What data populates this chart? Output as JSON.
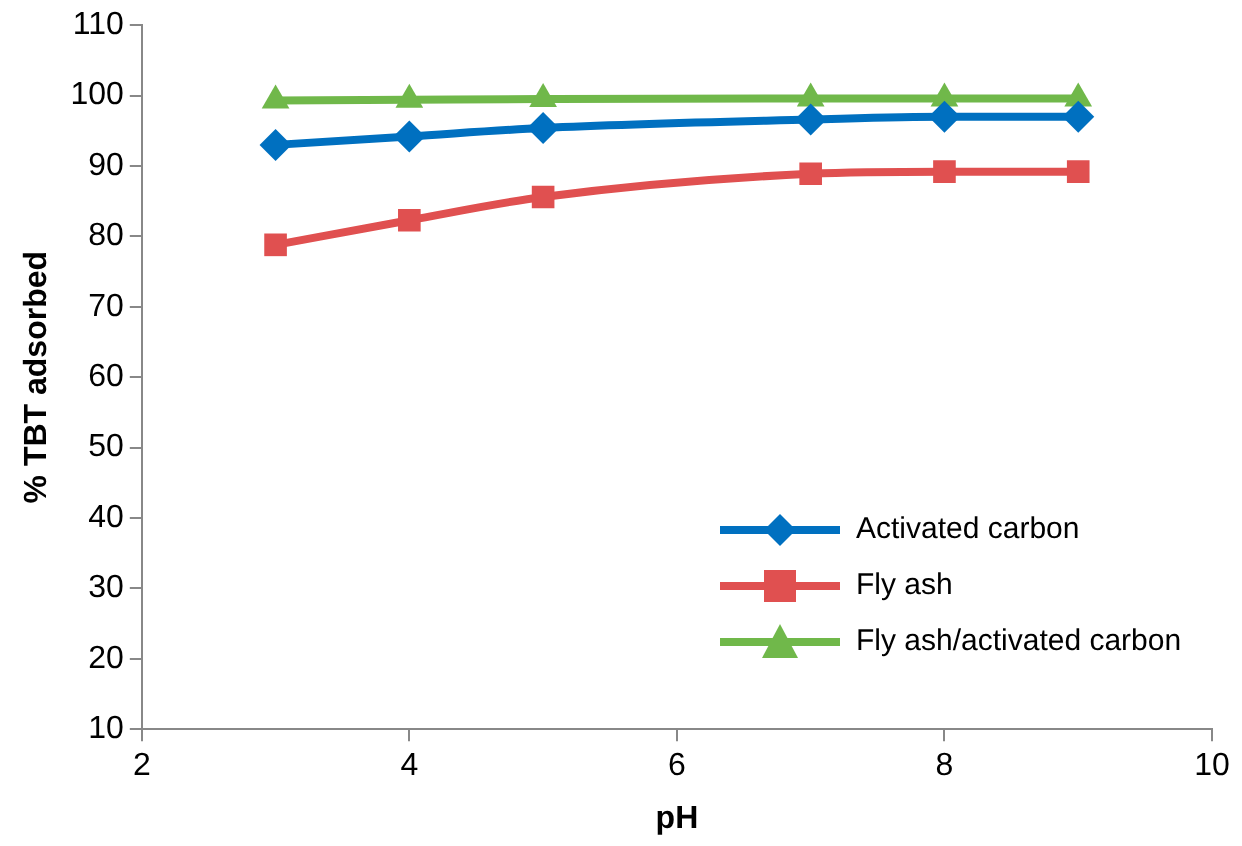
{
  "chart_data": {
    "type": "line",
    "xlabel": "pH",
    "ylabel": "% TBT adsorbed",
    "x": [
      3,
      4,
      5,
      7,
      8,
      9
    ],
    "series": [
      {
        "name": "Activated carbon",
        "color": "#0070c0",
        "marker": "diamond",
        "values": [
          93,
          94.2,
          95.4,
          96.6,
          97,
          97
        ]
      },
      {
        "name": "Fly ash",
        "color": "#e05050",
        "marker": "square",
        "values": [
          78.8,
          82.3,
          85.6,
          88.9,
          89.2,
          89.2
        ]
      },
      {
        "name": "Fly ash/activated carbon",
        "color": "#70b84a",
        "marker": "triangle",
        "values": [
          99.3,
          99.4,
          99.5,
          99.6,
          99.6,
          99.6
        ]
      }
    ],
    "xlim": [
      2,
      10
    ],
    "xticks": [
      2,
      4,
      6,
      8,
      10
    ],
    "ylim": [
      10,
      110
    ],
    "yticks": [
      10,
      20,
      30,
      40,
      50,
      60,
      70,
      80,
      90,
      100,
      110
    ],
    "grid": false,
    "legend": "bottom right"
  }
}
